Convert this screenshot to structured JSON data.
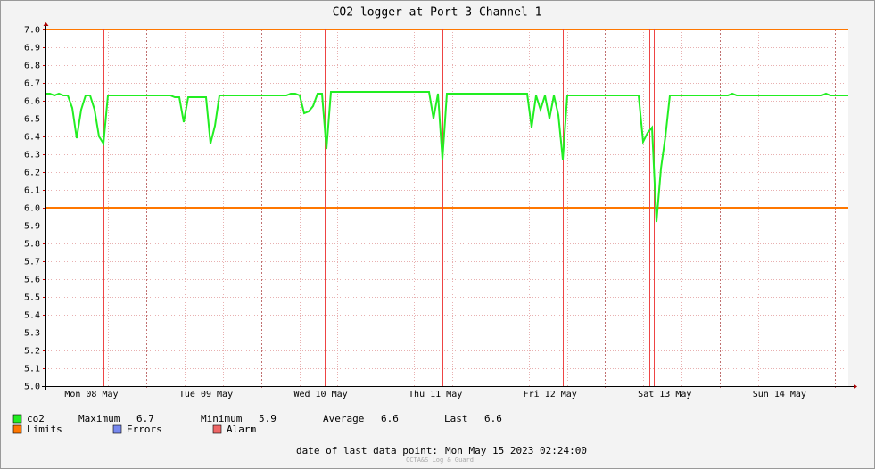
{
  "chart_data": {
    "type": "line",
    "title": "CO2 logger at Port 3 Channel 1",
    "x_labels": [
      "Mon 08 May",
      "Tue 09 May",
      "Wed 10 May",
      "Thu 11 May",
      "Fri 12 May",
      "Sat 13 May",
      "Sun 14 May"
    ],
    "series": [
      {
        "name": "co2",
        "color": "#22ee22",
        "values": [
          6.64,
          6.64,
          6.63,
          6.64,
          6.63,
          6.63,
          6.56,
          6.39,
          6.55,
          6.63,
          6.63,
          6.55,
          6.4,
          6.36,
          6.63,
          6.63,
          6.63,
          6.63,
          6.63,
          6.63,
          6.63,
          6.63,
          6.63,
          6.63,
          6.63,
          6.63,
          6.63,
          6.63,
          6.63,
          6.62,
          6.62,
          6.48,
          6.62,
          6.62,
          6.62,
          6.62,
          6.62,
          6.36,
          6.46,
          6.63,
          6.63,
          6.63,
          6.63,
          6.63,
          6.63,
          6.63,
          6.63,
          6.63,
          6.63,
          6.63,
          6.63,
          6.63,
          6.63,
          6.63,
          6.63,
          6.64,
          6.64,
          6.63,
          6.53,
          6.54,
          6.57,
          6.64,
          6.64,
          6.33,
          6.65,
          6.65,
          6.65,
          6.65,
          6.65,
          6.65,
          6.65,
          6.65,
          6.65,
          6.65,
          6.65,
          6.65,
          6.65,
          6.65,
          6.65,
          6.65,
          6.65,
          6.65,
          6.65,
          6.65,
          6.65,
          6.65,
          6.65,
          6.5,
          6.64,
          6.27,
          6.64,
          6.64,
          6.64,
          6.64,
          6.64,
          6.64,
          6.64,
          6.64,
          6.64,
          6.64,
          6.64,
          6.64,
          6.64,
          6.64,
          6.64,
          6.64,
          6.64,
          6.64,
          6.64,
          6.45,
          6.63,
          6.55,
          6.63,
          6.5,
          6.63,
          6.52,
          6.27,
          6.63,
          6.63,
          6.63,
          6.63,
          6.63,
          6.63,
          6.63,
          6.63,
          6.63,
          6.63,
          6.63,
          6.63,
          6.63,
          6.63,
          6.63,
          6.63,
          6.63,
          6.37,
          6.42,
          6.45,
          5.92,
          6.22,
          6.4,
          6.63,
          6.63,
          6.63,
          6.63,
          6.63,
          6.63,
          6.63,
          6.63,
          6.63,
          6.63,
          6.63,
          6.63,
          6.63,
          6.63,
          6.64,
          6.63,
          6.63,
          6.63,
          6.63,
          6.63,
          6.63,
          6.63,
          6.63,
          6.63,
          6.63,
          6.63,
          6.63,
          6.63,
          6.63,
          6.63,
          6.63,
          6.63,
          6.63,
          6.63,
          6.63,
          6.64,
          6.63,
          6.63,
          6.63,
          6.63,
          6.63
        ]
      }
    ],
    "limits": {
      "name": "Limits",
      "color": "#ff7700",
      "values": [
        7.0,
        6.0
      ]
    },
    "legend": {
      "errors": {
        "name": "Errors",
        "color": "#7788ee"
      },
      "alarm": {
        "name": "Alarm",
        "color": "#ee6666"
      }
    },
    "stats": [
      {
        "label": "Maximum",
        "value": 6.7
      },
      {
        "label": "Minimum",
        "value": 5.9
      },
      {
        "label": "Average",
        "value": 6.6
      },
      {
        "label": "Last",
        "value": 6.6
      }
    ],
    "footer_label": "date of last data point:",
    "footer_date": "Mon May 15 2023 02:24:00",
    "watermark": "OCTA&S Log & Guard",
    "ylim": [
      5.0,
      7.0
    ],
    "yticks": [
      {
        "value": 5.0,
        "label": "5.0"
      },
      5.1,
      5.2,
      5.3,
      5.4,
      5.5,
      5.6,
      5.7,
      5.8,
      5.9,
      {
        "value": 6.0,
        "label": "6.0"
      },
      6.1,
      6.2,
      6.3,
      6.4,
      6.5,
      6.6,
      6.7,
      6.8,
      6.9,
      {
        "value": 7.0,
        "label": "7.0"
      }
    ],
    "grid": true
  }
}
